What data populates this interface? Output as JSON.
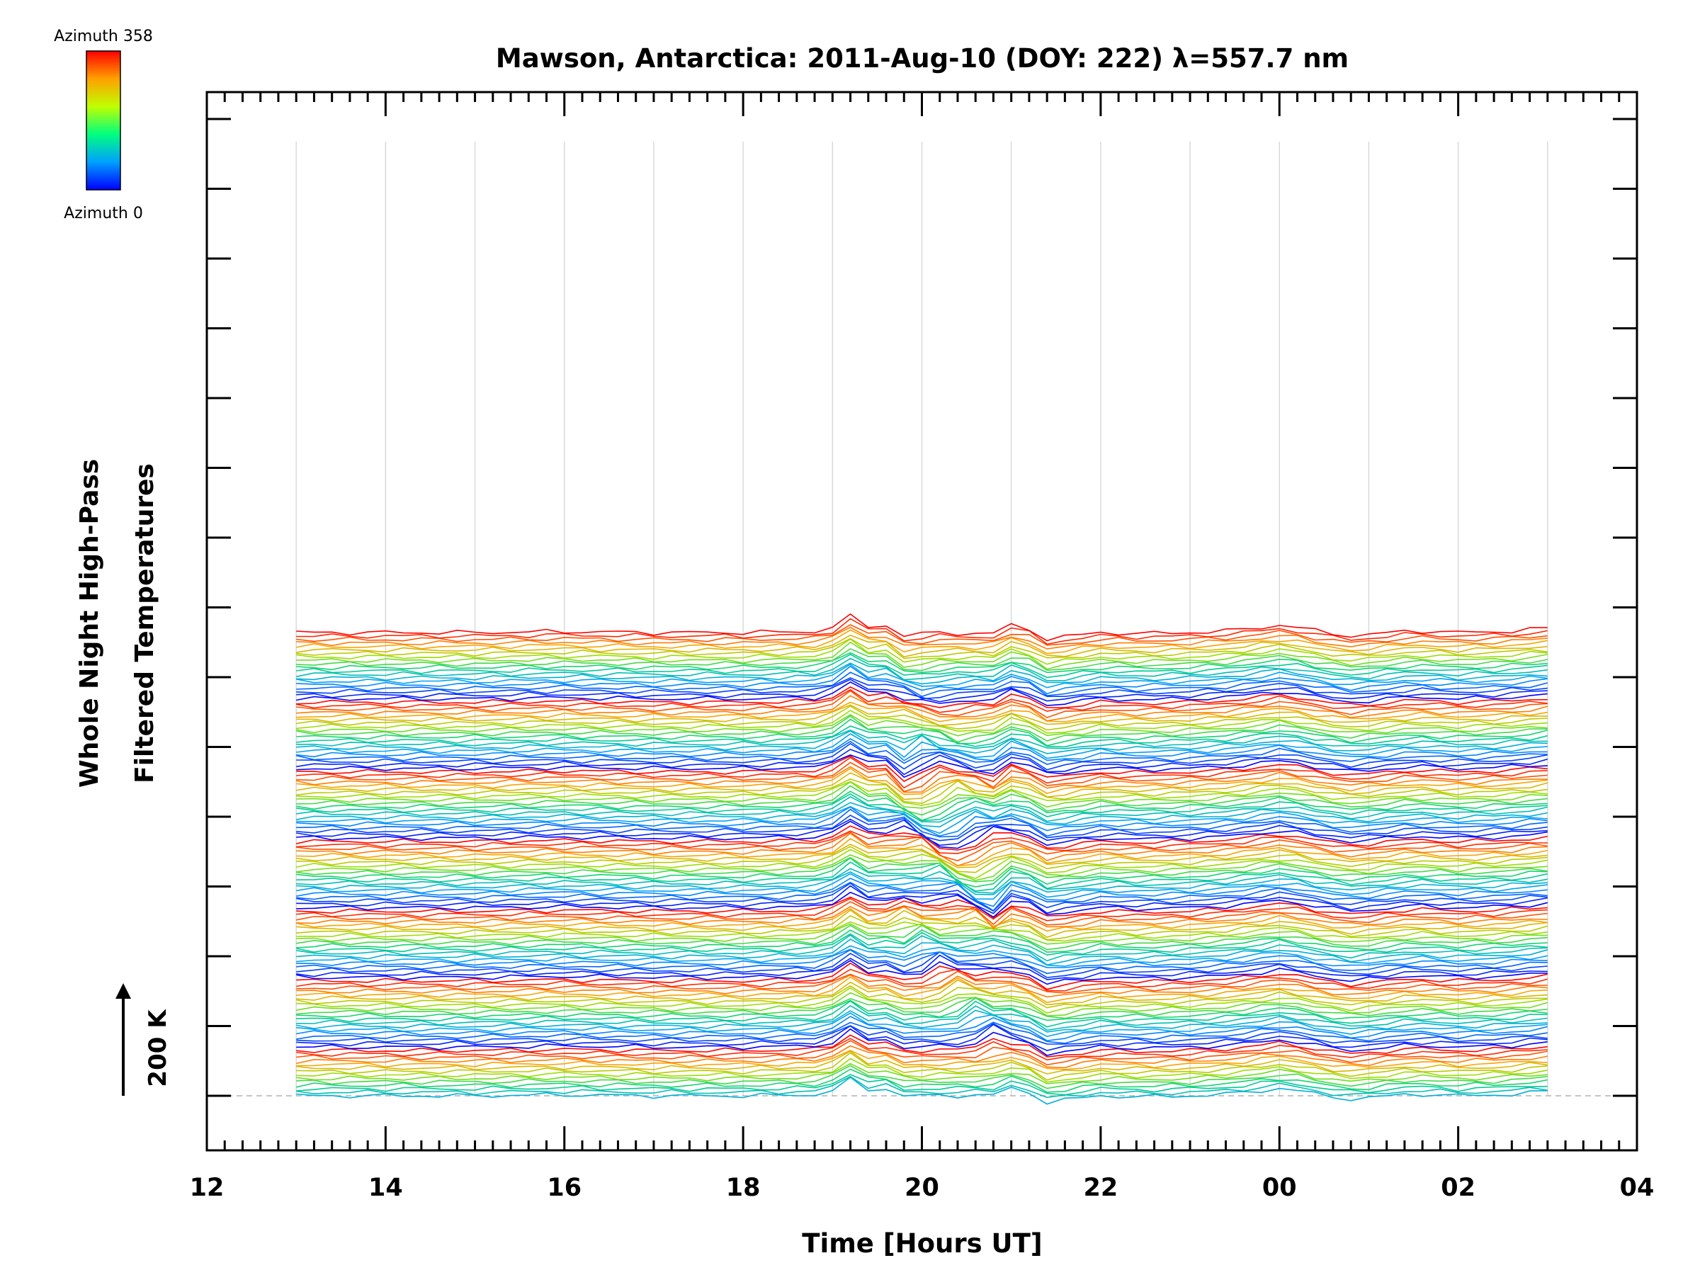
{
  "chart_data": {
    "type": "line",
    "title": "Mawson, Antarctica: 2011-Aug-10 (DOY: 222) λ=557.7 nm",
    "ylabel_line1": "Whole Night High-Pass",
    "ylabel_line2": "Filtered Temperatures",
    "xlabel": "Time [Hours UT]",
    "x_tick_labels": [
      "12",
      "14",
      "16",
      "18",
      "20",
      "22",
      "00",
      "02",
      "04"
    ],
    "xlim": [
      12,
      28
    ],
    "x_data_range": [
      13.0,
      27.1
    ],
    "scale_bar_label": "200 K",
    "scale_bar_kelvin": 200,
    "colorbar": {
      "top_label": "Azimuth  358",
      "bottom_label": "Azimuth  0",
      "min": 0,
      "max": 358,
      "colors": [
        "#0000ff",
        "#00a0ff",
        "#00ff80",
        "#c0ff00",
        "#ffa000",
        "#ff0000"
      ]
    },
    "series_layout": {
      "groups": 7,
      "lines_per_group": 20,
      "group_sizes_bottom_to_top": [
        14,
        20,
        20,
        20,
        20,
        20,
        20
      ],
      "line_spacing_kelvin": 6.6
    },
    "common_perturbation_kelvin": {
      "x": [
        13.0,
        14.0,
        15.0,
        16.0,
        17.0,
        18.0,
        18.8,
        19.0,
        19.15,
        19.4,
        19.8,
        20.0,
        20.2,
        20.4,
        20.6,
        20.8,
        20.9,
        21.0,
        21.1,
        21.2,
        21.4,
        21.6,
        22.0,
        22.5,
        23.0,
        23.5,
        24.0,
        24.2,
        24.5,
        24.8,
        25.0,
        25.5,
        26.0,
        26.5,
        27.0,
        27.1
      ],
      "y": [
        0,
        0,
        0,
        2,
        0,
        0,
        2,
        10,
        35,
        12,
        15,
        25,
        -8,
        -22,
        -15,
        8,
        18,
        14,
        0,
        6,
        -12,
        -8,
        0,
        -2,
        0,
        4,
        14,
        10,
        0,
        -6,
        -4,
        4,
        0,
        2,
        8,
        -4
      ]
    },
    "grid": "vertical",
    "baseline_dashed": true
  }
}
